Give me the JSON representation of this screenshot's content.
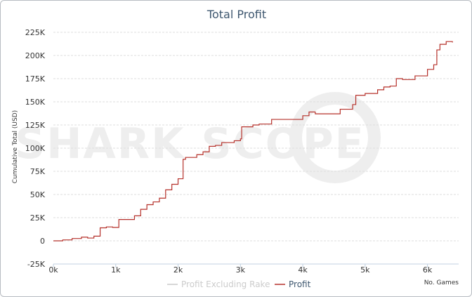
{
  "chart_data": {
    "type": "line",
    "title": "Total Profit",
    "ylabel": "Cumulative Total (USD)",
    "xlabel": "No. Games",
    "watermark": "SHARK SCOPE",
    "xlim": [
      0,
      6500
    ],
    "ylim": [
      -25000,
      225000
    ],
    "x_ticks": [
      0,
      1000,
      2000,
      3000,
      4000,
      5000,
      6000
    ],
    "x_tick_labels": [
      "0k",
      "1k",
      "2k",
      "3k",
      "4k",
      "5k",
      "6k"
    ],
    "y_ticks": [
      -25000,
      0,
      25000,
      50000,
      75000,
      100000,
      125000,
      150000,
      175000,
      200000,
      225000
    ],
    "y_tick_labels": [
      "-25K",
      "0",
      "25K",
      "50K",
      "75K",
      "100K",
      "125K",
      "150K",
      "175K",
      "200K",
      "225K"
    ],
    "legend_position": "bottom-center",
    "grid": true,
    "colors": {
      "profit": "#b5302a",
      "profit_excluding_rake": "#c8c8c8",
      "grid": "#dddddd",
      "title": "#3e576f"
    },
    "series": [
      {
        "name": "Profit Excluding Rake",
        "visible": false,
        "x": [],
        "y": []
      },
      {
        "name": "Profit",
        "visible": true,
        "x": [
          0,
          150,
          300,
          450,
          550,
          650,
          750,
          850,
          950,
          1050,
          1200,
          1300,
          1400,
          1500,
          1600,
          1700,
          1800,
          1900,
          2000,
          2080,
          2120,
          2300,
          2400,
          2500,
          2600,
          2700,
          2900,
          3000,
          3020,
          3200,
          3300,
          3500,
          3600,
          3800,
          4000,
          4100,
          4200,
          4400,
          4600,
          4800,
          4850,
          5000,
          5200,
          5300,
          5400,
          5500,
          5600,
          5800,
          6000,
          6100,
          6150,
          6200,
          6300,
          6400
        ],
        "y": [
          0,
          1000,
          2500,
          4000,
          3000,
          5000,
          14000,
          15000,
          14500,
          23000,
          23000,
          27000,
          34000,
          39000,
          42000,
          46000,
          55000,
          61000,
          67000,
          88000,
          90000,
          93000,
          96000,
          102000,
          103000,
          106000,
          108000,
          110000,
          123000,
          125000,
          126000,
          131000,
          131000,
          131000,
          135000,
          139000,
          137000,
          137000,
          142000,
          147000,
          157000,
          159000,
          163000,
          166000,
          167000,
          175000,
          174000,
          178000,
          185000,
          190000,
          206000,
          212000,
          215000,
          214000
        ]
      }
    ]
  }
}
